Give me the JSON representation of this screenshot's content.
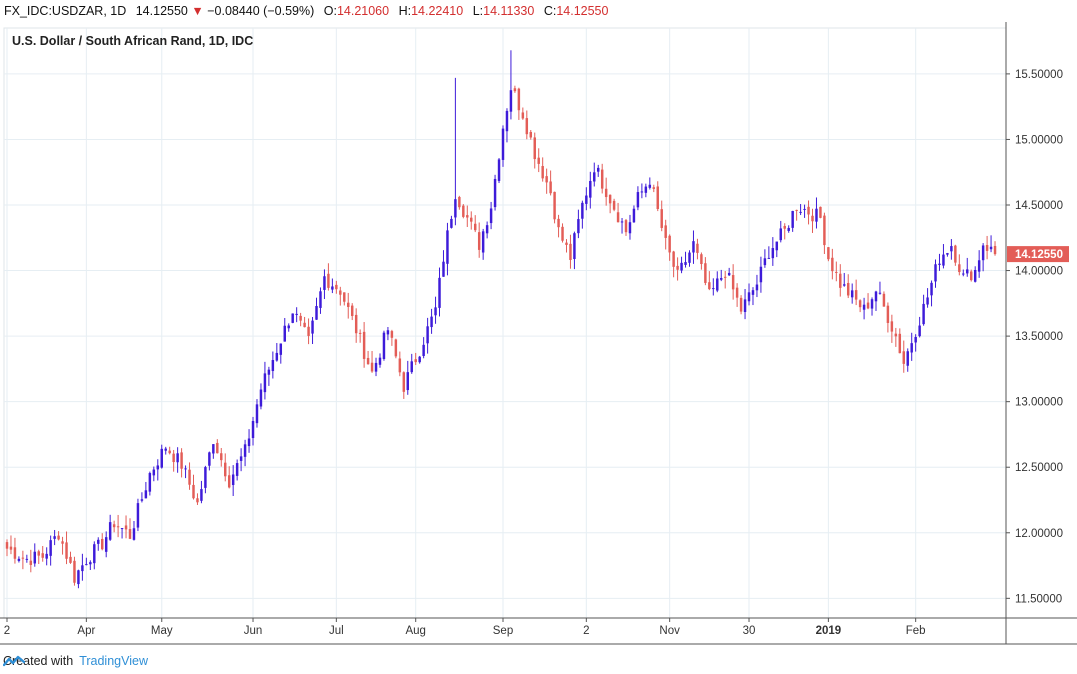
{
  "header": {
    "symbol": "FX_IDC:USDZAR, 1D",
    "last": "14.12550",
    "change_arrow": "▼",
    "change": "−0.08440 (−0.59%)",
    "open_label": "O:",
    "open": "14.21060",
    "high_label": "H:",
    "high": "14.22410",
    "low_label": "L:",
    "low": "14.11330",
    "close_label": "C:",
    "close": "14.12550"
  },
  "footer": {
    "created_with": "Created with",
    "brand": "TradingView"
  },
  "colors": {
    "up": "#3d1bd9",
    "down": "#e35d57",
    "grid": "#e6eef3",
    "last_price_tag": "#e35d57"
  },
  "chart_data": {
    "type": "candlestick",
    "title": "U.S. Dollar / South African Rand, 1D, IDC",
    "ylim": [
      11.35,
      15.85
    ],
    "y_ticks": [
      "11.50000",
      "12.00000",
      "12.50000",
      "13.00000",
      "13.50000",
      "14.00000",
      "14.50000",
      "15.00000",
      "15.50000"
    ],
    "x_tick_labels": [
      "2",
      "Apr",
      "May",
      "Jun",
      "Jul",
      "Aug",
      "Sep",
      "2",
      "Nov",
      "30",
      "2019",
      "Feb"
    ],
    "x_tick_bold": [
      false,
      false,
      false,
      false,
      false,
      false,
      false,
      false,
      false,
      false,
      true,
      false
    ],
    "x_tick_index": [
      0,
      20,
      39,
      62,
      83,
      103,
      125,
      146,
      167,
      187,
      207,
      229
    ],
    "last_price_label": "14.12550",
    "bar_count": 250,
    "close_anchors": [
      [
        0,
        11.88
      ],
      [
        5,
        11.8
      ],
      [
        9,
        11.82
      ],
      [
        13,
        12.0
      ],
      [
        16,
        11.75
      ],
      [
        17,
        11.66
      ],
      [
        20,
        11.8
      ],
      [
        24,
        11.92
      ],
      [
        27,
        12.08
      ],
      [
        31,
        11.98
      ],
      [
        36,
        12.45
      ],
      [
        40,
        12.66
      ],
      [
        44,
        12.52
      ],
      [
        48,
        12.22
      ],
      [
        52,
        12.72
      ],
      [
        56,
        12.4
      ],
      [
        60,
        12.62
      ],
      [
        64,
        13.1
      ],
      [
        68,
        13.4
      ],
      [
        72,
        13.7
      ],
      [
        76,
        13.45
      ],
      [
        80,
        13.95
      ],
      [
        84,
        13.85
      ],
      [
        88,
        13.55
      ],
      [
        92,
        13.22
      ],
      [
        96,
        13.55
      ],
      [
        100,
        13.12
      ],
      [
        104,
        13.4
      ],
      [
        108,
        13.7
      ],
      [
        110,
        14.1
      ],
      [
        113,
        14.6
      ],
      [
        116,
        14.4
      ],
      [
        119,
        14.2
      ],
      [
        122,
        14.5
      ],
      [
        125,
        15.1
      ],
      [
        127,
        15.4
      ],
      [
        130,
        15.2
      ],
      [
        133,
        14.9
      ],
      [
        137,
        14.6
      ],
      [
        139,
        14.3
      ],
      [
        142,
        14.1
      ],
      [
        145,
        14.5
      ],
      [
        148,
        14.8
      ],
      [
        152,
        14.55
      ],
      [
        156,
        14.3
      ],
      [
        159,
        14.55
      ],
      [
        162,
        14.7
      ],
      [
        166,
        14.2
      ],
      [
        169,
        13.95
      ],
      [
        173,
        14.2
      ],
      [
        177,
        13.8
      ],
      [
        181,
        14.0
      ],
      [
        185,
        13.7
      ],
      [
        189,
        13.9
      ],
      [
        192,
        14.15
      ],
      [
        196,
        14.3
      ],
      [
        199,
        14.5
      ],
      [
        202,
        14.45
      ],
      [
        205,
        14.4
      ],
      [
        207,
        14.1
      ],
      [
        210,
        13.9
      ],
      [
        213,
        13.8
      ],
      [
        216,
        13.7
      ],
      [
        219,
        13.85
      ],
      [
        222,
        13.65
      ],
      [
        224,
        13.5
      ],
      [
        226,
        13.3
      ],
      [
        229,
        13.55
      ],
      [
        232,
        13.8
      ],
      [
        235,
        14.1
      ],
      [
        238,
        14.2
      ],
      [
        241,
        13.95
      ],
      [
        244,
        14.0
      ],
      [
        246,
        14.21
      ],
      [
        249,
        14.1255
      ]
    ],
    "grid": true
  }
}
